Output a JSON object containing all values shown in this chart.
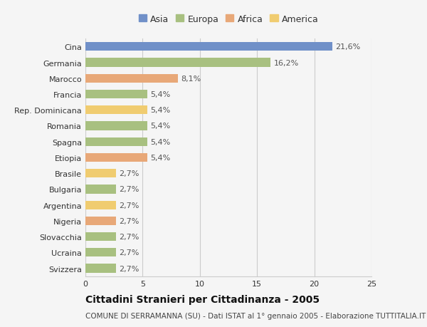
{
  "countries": [
    "Cina",
    "Germania",
    "Marocco",
    "Francia",
    "Rep. Dominicana",
    "Romania",
    "Spagna",
    "Etiopia",
    "Brasile",
    "Bulgaria",
    "Argentina",
    "Nigeria",
    "Slovacchia",
    "Ucraina",
    "Svizzera"
  ],
  "values": [
    21.6,
    16.2,
    8.1,
    5.4,
    5.4,
    5.4,
    5.4,
    5.4,
    2.7,
    2.7,
    2.7,
    2.7,
    2.7,
    2.7,
    2.7
  ],
  "labels": [
    "21,6%",
    "16,2%",
    "8,1%",
    "5,4%",
    "5,4%",
    "5,4%",
    "5,4%",
    "5,4%",
    "2,7%",
    "2,7%",
    "2,7%",
    "2,7%",
    "2,7%",
    "2,7%",
    "2,7%"
  ],
  "continents": [
    "Asia",
    "Europa",
    "Africa",
    "Europa",
    "America",
    "Europa",
    "Europa",
    "Africa",
    "America",
    "Europa",
    "America",
    "Africa",
    "Europa",
    "Europa",
    "Europa"
  ],
  "colors": {
    "Asia": "#7090c8",
    "Europa": "#a8c080",
    "Africa": "#e8a878",
    "America": "#f0cc70"
  },
  "legend_order": [
    "Asia",
    "Europa",
    "Africa",
    "America"
  ],
  "title": "Cittadini Stranieri per Cittadinanza - 2005",
  "subtitle": "COMUNE DI SERRAMANNA (SU) - Dati ISTAT al 1° gennaio 2005 - Elaborazione TUTTITALIA.IT",
  "xlim": [
    0,
    25
  ],
  "xticks": [
    0,
    5,
    10,
    15,
    20,
    25
  ],
  "bg_color": "#f5f5f5",
  "plot_bg_color": "#f5f5f5",
  "grid_color": "#cccccc",
  "bar_height": 0.55,
  "title_fontsize": 10,
  "subtitle_fontsize": 7.5,
  "label_fontsize": 8,
  "tick_fontsize": 8,
  "legend_fontsize": 9,
  "label_color": "#555555",
  "text_color": "#333333"
}
